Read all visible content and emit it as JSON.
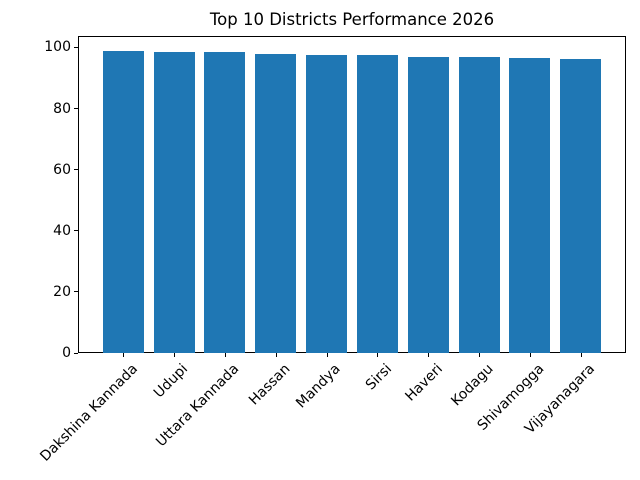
{
  "figure": {
    "background": "#ffffff"
  },
  "chart_data": {
    "type": "bar",
    "title": "Top 10 Districts Performance 2026",
    "categories": [
      "Dakshina Kannada",
      "Udupi",
      "Uttara Kannada",
      "Hassan",
      "Mandya",
      "Sirsi",
      "Haveri",
      "Kodagu",
      "Shivamogga",
      "Vijayanagara"
    ],
    "values": [
      98.8,
      98.5,
      98.4,
      97.7,
      97.6,
      97.4,
      97.0,
      96.8,
      96.7,
      96.3
    ],
    "xlabel": "",
    "ylabel": "",
    "yticks": [
      0,
      20,
      40,
      60,
      80,
      100
    ],
    "ylim": [
      0,
      103.74
    ],
    "xtick_rotation_deg": 45,
    "grid": false,
    "legend_position": "none",
    "bar_color": "#1f77b4",
    "axis_color": "#000000",
    "text_color": "#000000"
  }
}
